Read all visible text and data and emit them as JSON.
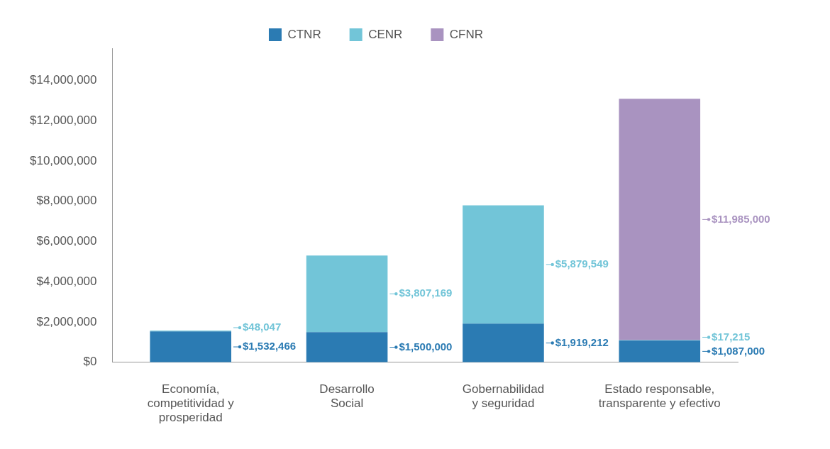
{
  "chart_data": {
    "type": "bar",
    "stacked": true,
    "categories": [
      "Economía,\ncompetitividad y\nprosperidad",
      "Desarrollo\nSocial",
      "Gobernabilidad\ny seguridad",
      "Estado responsable,\ntransparente y efectivo"
    ],
    "series": [
      {
        "name": "CTNR",
        "color": "#2b7bb3",
        "values": [
          1532466,
          1500000,
          1919212,
          1087000
        ],
        "value_labels": [
          "$1,532,466",
          "$1,500,000",
          "$1,919,212",
          "$1,087,000"
        ]
      },
      {
        "name": "CENR",
        "color": "#72c5d8",
        "values": [
          48047,
          3807169,
          5879549,
          17215
        ],
        "value_labels": [
          "$48,047",
          "$3,807,169",
          "$5,879,549",
          "$17,215"
        ]
      },
      {
        "name": "CFNR",
        "color": "#a993c0",
        "values": [
          null,
          null,
          null,
          11985000
        ],
        "value_labels": [
          null,
          null,
          null,
          "$11,985,000"
        ]
      }
    ],
    "ylim": [
      0,
      15600000
    ],
    "yticks": [
      {
        "value": 0,
        "label": "$0"
      },
      {
        "value": 2000000,
        "label": "$2,000,000"
      },
      {
        "value": 4000000,
        "label": "$4,000,000"
      },
      {
        "value": 6000000,
        "label": "$6,000,000"
      },
      {
        "value": 8000000,
        "label": "$8,000,000"
      },
      {
        "value": 10000000,
        "label": "$10,000,000"
      },
      {
        "value": 12000000,
        "label": "$12,000,000"
      },
      {
        "value": 14000000,
        "label": "$14,000,000"
      }
    ],
    "grid": false,
    "legend": "top"
  }
}
